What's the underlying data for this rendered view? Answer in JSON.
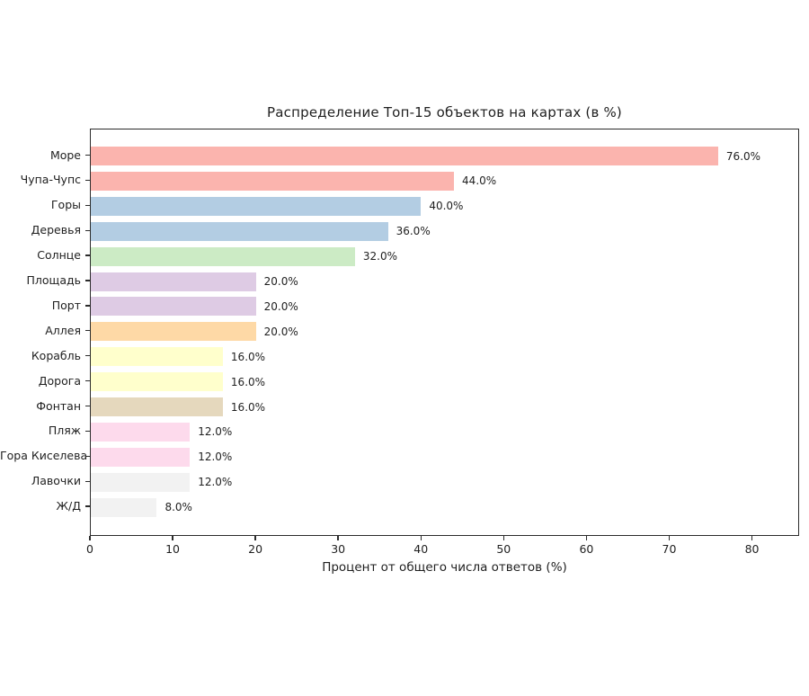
{
  "chart_data": {
    "type": "bar",
    "orientation": "horizontal",
    "title": "Распределение Топ-15 объектов на картах (в %)",
    "xlabel": "Процент от общего числа ответов (%)",
    "ylabel": "",
    "categories": [
      "Море",
      "Чупа-Чупс",
      "Горы",
      "Деревья",
      "Солнце",
      "Площадь",
      "Порт",
      "Аллея",
      "Корабль",
      "Дорога",
      "Фонтан",
      "Пляж",
      "Гора Киселева",
      "Лавочки",
      "Ж/Д"
    ],
    "values": [
      76.0,
      44.0,
      40.0,
      36.0,
      32.0,
      20.0,
      20.0,
      20.0,
      16.0,
      16.0,
      16.0,
      12.0,
      12.0,
      12.0,
      8.0
    ],
    "value_labels": [
      "76.0%",
      "44.0%",
      "40.0%",
      "36.0%",
      "32.0%",
      "20.0%",
      "20.0%",
      "20.0%",
      "16.0%",
      "16.0%",
      "16.0%",
      "12.0%",
      "12.0%",
      "12.0%",
      "8.0%"
    ],
    "bar_colors": [
      "#fbb4ae",
      "#fbb4ae",
      "#b3cde3",
      "#b3cde3",
      "#ccebc5",
      "#decbe4",
      "#decbe4",
      "#fed9a6",
      "#ffffcc",
      "#ffffcc",
      "#e5d8bd",
      "#fddaec",
      "#fddaec",
      "#f2f2f2",
      "#f2f2f2"
    ],
    "xlim": [
      0,
      85.7
    ],
    "xticks": [
      0,
      10,
      20,
      30,
      40,
      50,
      60,
      70,
      80
    ],
    "xtick_labels": [
      "0",
      "10",
      "20",
      "30",
      "40",
      "50",
      "60",
      "70",
      "80"
    ],
    "grid": false,
    "legend": null,
    "text_color": "#1f1f1f",
    "frame_color": "#2b2b2b",
    "background_color": "#ffffff"
  }
}
